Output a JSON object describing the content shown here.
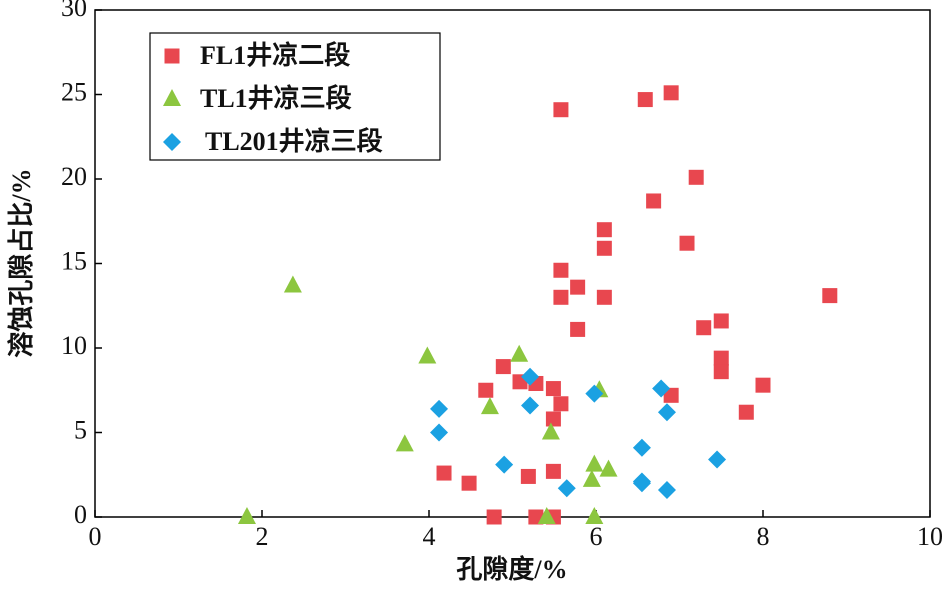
{
  "chart_data": {
    "type": "scatter",
    "xlabel": "孔隙度/%",
    "ylabel": "溶蚀孔隙占比/%",
    "xlim": [
      0,
      10
    ],
    "xticks": [
      0,
      2,
      4,
      6,
      8,
      10
    ],
    "ylim": [
      0,
      30
    ],
    "yticks": [
      0,
      5,
      10,
      15,
      20,
      25,
      30
    ],
    "legend": "upper left",
    "series": [
      {
        "name": "FL1井凉二段",
        "color": "#e8474f",
        "marker": "square",
        "x": [
          5.58,
          6.59,
          6.9,
          7.2,
          6.69,
          6.1,
          7.09,
          6.1,
          5.58,
          5.78,
          5.58,
          6.1,
          8.8,
          7.5,
          7.29,
          5.78,
          7.5,
          7.5,
          4.89,
          5.09,
          5.28,
          5.49,
          4.68,
          8.0,
          6.9,
          5.58,
          5.49,
          7.8,
          4.18,
          5.19,
          5.49,
          4.48,
          4.78,
          5.28,
          5.49
        ],
        "y": [
          24.1,
          24.7,
          25.1,
          20.1,
          18.7,
          17.0,
          16.2,
          15.9,
          14.6,
          13.6,
          13.0,
          13.0,
          13.1,
          11.6,
          11.2,
          11.1,
          9.4,
          8.6,
          8.9,
          8.0,
          7.9,
          7.6,
          7.5,
          7.8,
          7.2,
          6.7,
          5.8,
          6.2,
          2.6,
          2.4,
          2.7,
          2.0,
          0,
          0,
          0
        ]
      },
      {
        "name": "TL1井凉三段",
        "color": "#8cc63f",
        "marker": "triangle",
        "x": [
          1.82,
          2.37,
          3.71,
          3.98,
          4.73,
          5.08,
          6.04,
          5.46,
          5.98,
          6.15,
          5.95,
          5.41,
          5.98
        ],
        "y": [
          0,
          13.7,
          4.3,
          9.5,
          6.5,
          9.6,
          7.5,
          5.0,
          3.1,
          2.8,
          2.2,
          0,
          0
        ]
      },
      {
        "name": "TL201井凉三段",
        "color": "#1ba1e2",
        "marker": "diamond",
        "x": [
          4.12,
          4.12,
          4.9,
          5.21,
          5.21,
          5.65,
          5.98,
          6.78,
          6.85,
          6.55,
          6.55,
          6.55,
          6.85,
          7.45
        ],
        "y": [
          6.4,
          5.0,
          3.1,
          8.3,
          6.6,
          1.7,
          7.3,
          7.6,
          6.2,
          4.1,
          2.1,
          2.0,
          1.6,
          3.4
        ]
      }
    ]
  }
}
